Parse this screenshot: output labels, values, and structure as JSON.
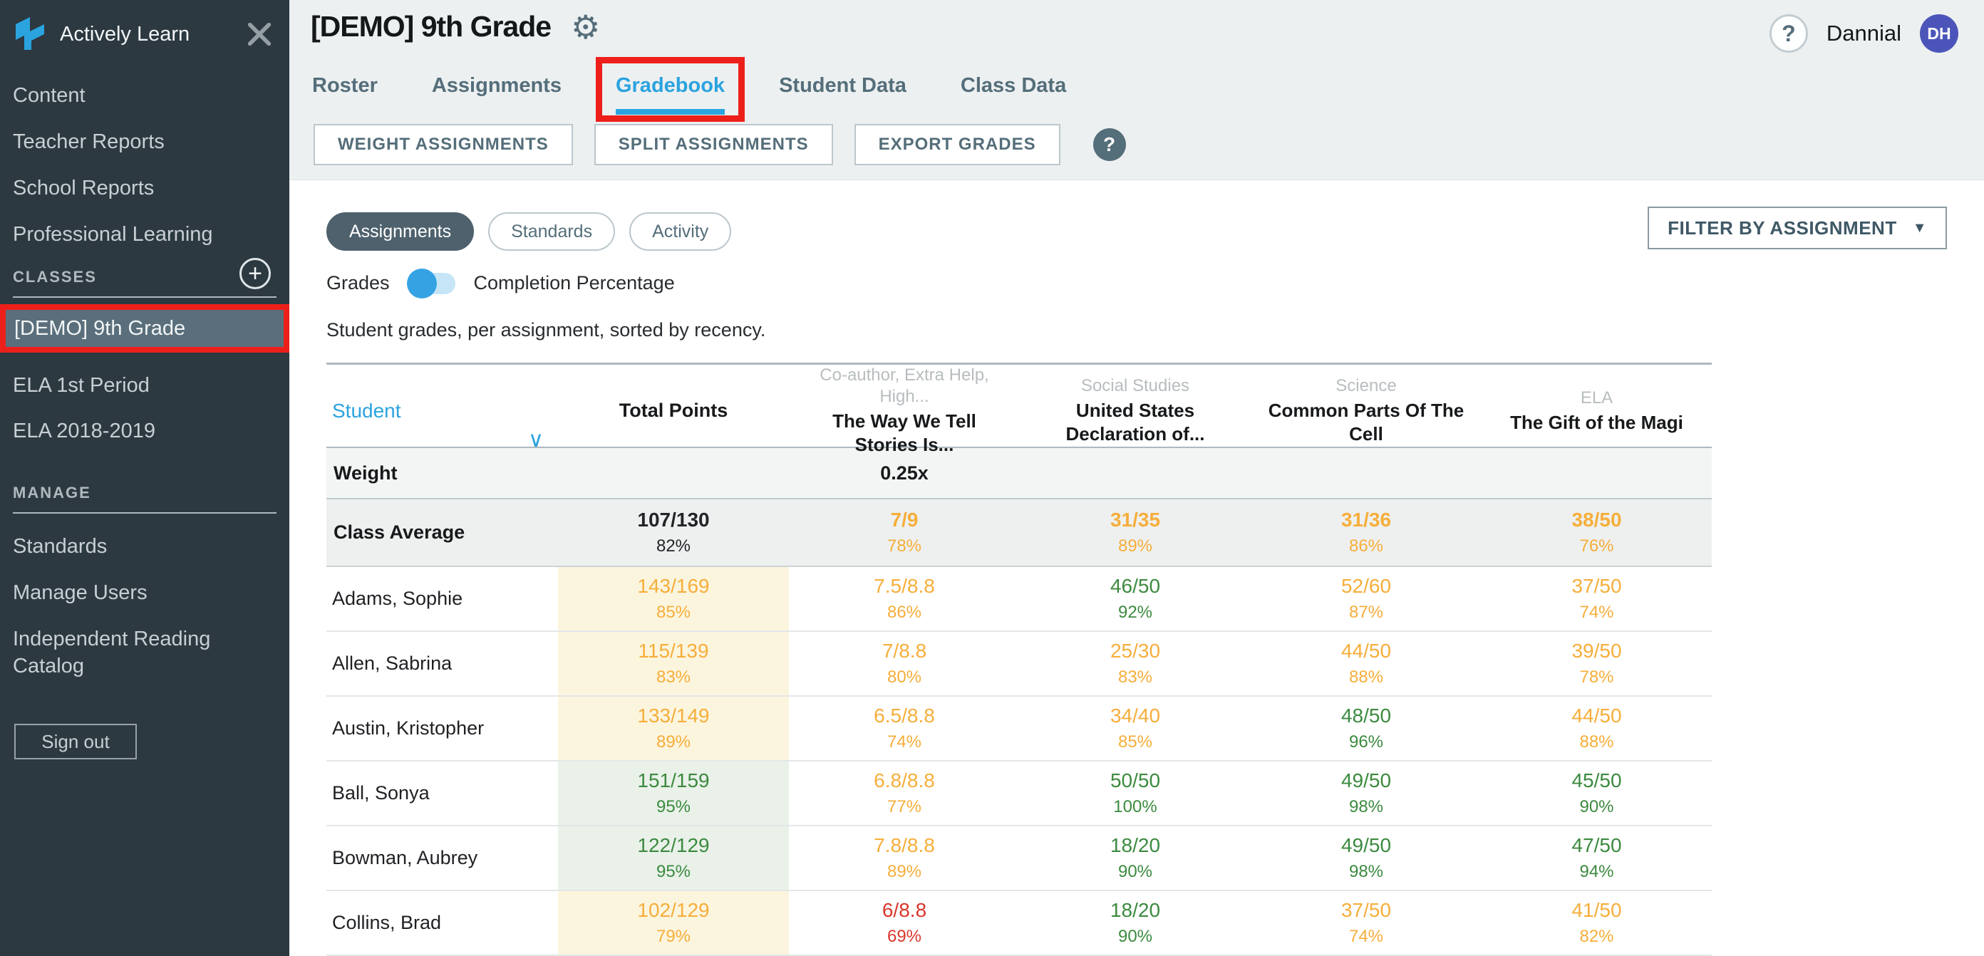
{
  "icons": {
    "gear": "⚙",
    "help": "?",
    "close": "×",
    "plus": "+",
    "caret_down": "▼",
    "sort_down": "∨"
  },
  "colors": {
    "accent_blue": "#2BA3DF",
    "grade_orange": "#F6AE3B",
    "grade_green": "#3C8A3F",
    "grade_red": "#D9352C",
    "annotation_red": "#ED1F1A",
    "avatar_purple": "#4B55B9",
    "sidebar_dark": "#2C3941"
  },
  "sidebar": {
    "brand": "Actively Learn",
    "nav": [
      "Content",
      "Teacher Reports",
      "School Reports",
      "Professional Learning"
    ],
    "classes_label": "CLASSES",
    "classes": [
      "[DEMO] 9th Grade",
      "ELA 1st Period",
      "ELA 2018-2019"
    ],
    "selected_class": "[DEMO] 9th Grade",
    "manage_label": "MANAGE",
    "manage": [
      "Standards",
      "Manage Users",
      "Independent Reading Catalog"
    ],
    "sign_out": "Sign out"
  },
  "header": {
    "title": "[DEMO] 9th Grade",
    "user_name": "Dannial",
    "user_initials": "DH",
    "tabs": [
      "Roster",
      "Assignments",
      "Gradebook",
      "Student Data",
      "Class Data"
    ],
    "active_tab": "Gradebook",
    "buttons": [
      "WEIGHT ASSIGNMENTS",
      "SPLIT ASSIGNMENTS",
      "EXPORT GRADES"
    ]
  },
  "toolbar": {
    "pills": [
      "Assignments",
      "Standards",
      "Activity"
    ],
    "active_pill": "Assignments",
    "filter_button": "FILTER BY ASSIGNMENT",
    "toggle_left": "Grades",
    "toggle_right": "Completion Percentage",
    "description": "Student grades, per assignment, sorted by recency."
  },
  "table": {
    "columns": {
      "student": "Student",
      "total_points": "Total Points",
      "assignments": [
        {
          "subject": "Co-author, Extra Help, High...",
          "title": "The Way We Tell Stories Is..."
        },
        {
          "subject": "Social Studies",
          "title": "United States Declaration of..."
        },
        {
          "subject": "Science",
          "title": "Common Parts Of The Cell"
        },
        {
          "subject": "ELA",
          "title": "The Gift of the Magi"
        }
      ]
    },
    "weight_row": {
      "label": "Weight",
      "values": [
        "",
        "0.25x",
        "",
        "",
        ""
      ]
    },
    "class_average": {
      "label": "Class Average",
      "cells": [
        {
          "score": "107/130",
          "pct": "82%",
          "color": "dark"
        },
        {
          "score": "7/9",
          "pct": "78%",
          "color": "orange"
        },
        {
          "score": "31/35",
          "pct": "89%",
          "color": "orange"
        },
        {
          "score": "31/36",
          "pct": "86%",
          "color": "orange"
        },
        {
          "score": "38/50",
          "pct": "76%",
          "color": "orange"
        }
      ]
    },
    "rows": [
      {
        "name": "Adams, Sophie",
        "cells": [
          {
            "score": "143/169",
            "pct": "85%",
            "color": "orange",
            "bg": "bg-yellow"
          },
          {
            "score": "7.5/8.8",
            "pct": "86%",
            "color": "orange",
            "bg": "bg-none"
          },
          {
            "score": "46/50",
            "pct": "92%",
            "color": "green",
            "bg": "bg-none"
          },
          {
            "score": "52/60",
            "pct": "87%",
            "color": "orange",
            "bg": "bg-none"
          },
          {
            "score": "37/50",
            "pct": "74%",
            "color": "orange",
            "bg": "bg-none"
          }
        ]
      },
      {
        "name": "Allen, Sabrina",
        "cells": [
          {
            "score": "115/139",
            "pct": "83%",
            "color": "orange",
            "bg": "bg-yellow"
          },
          {
            "score": "7/8.8",
            "pct": "80%",
            "color": "orange",
            "bg": "bg-none"
          },
          {
            "score": "25/30",
            "pct": "83%",
            "color": "orange",
            "bg": "bg-none"
          },
          {
            "score": "44/50",
            "pct": "88%",
            "color": "orange",
            "bg": "bg-none"
          },
          {
            "score": "39/50",
            "pct": "78%",
            "color": "orange",
            "bg": "bg-none"
          }
        ]
      },
      {
        "name": "Austin, Kristopher",
        "cells": [
          {
            "score": "133/149",
            "pct": "89%",
            "color": "orange",
            "bg": "bg-yellow"
          },
          {
            "score": "6.5/8.8",
            "pct": "74%",
            "color": "orange",
            "bg": "bg-none"
          },
          {
            "score": "34/40",
            "pct": "85%",
            "color": "orange",
            "bg": "bg-none"
          },
          {
            "score": "48/50",
            "pct": "96%",
            "color": "green",
            "bg": "bg-none"
          },
          {
            "score": "44/50",
            "pct": "88%",
            "color": "orange",
            "bg": "bg-none"
          }
        ]
      },
      {
        "name": "Ball, Sonya",
        "cells": [
          {
            "score": "151/159",
            "pct": "95%",
            "color": "green",
            "bg": "bg-green"
          },
          {
            "score": "6.8/8.8",
            "pct": "77%",
            "color": "orange",
            "bg": "bg-none"
          },
          {
            "score": "50/50",
            "pct": "100%",
            "color": "green",
            "bg": "bg-none"
          },
          {
            "score": "49/50",
            "pct": "98%",
            "color": "green",
            "bg": "bg-none"
          },
          {
            "score": "45/50",
            "pct": "90%",
            "color": "green",
            "bg": "bg-none"
          }
        ]
      },
      {
        "name": "Bowman, Aubrey",
        "cells": [
          {
            "score": "122/129",
            "pct": "95%",
            "color": "green",
            "bg": "bg-green"
          },
          {
            "score": "7.8/8.8",
            "pct": "89%",
            "color": "orange",
            "bg": "bg-none"
          },
          {
            "score": "18/20",
            "pct": "90%",
            "color": "green",
            "bg": "bg-none"
          },
          {
            "score": "49/50",
            "pct": "98%",
            "color": "green",
            "bg": "bg-none"
          },
          {
            "score": "47/50",
            "pct": "94%",
            "color": "green",
            "bg": "bg-none"
          }
        ]
      },
      {
        "name": "Collins, Brad",
        "cells": [
          {
            "score": "102/129",
            "pct": "79%",
            "color": "orange",
            "bg": "bg-yellow"
          },
          {
            "score": "6/8.8",
            "pct": "69%",
            "color": "red",
            "bg": "bg-none"
          },
          {
            "score": "18/20",
            "pct": "90%",
            "color": "green",
            "bg": "bg-none"
          },
          {
            "score": "37/50",
            "pct": "74%",
            "color": "orange",
            "bg": "bg-none"
          },
          {
            "score": "41/50",
            "pct": "82%",
            "color": "orange",
            "bg": "bg-none"
          }
        ]
      }
    ]
  }
}
